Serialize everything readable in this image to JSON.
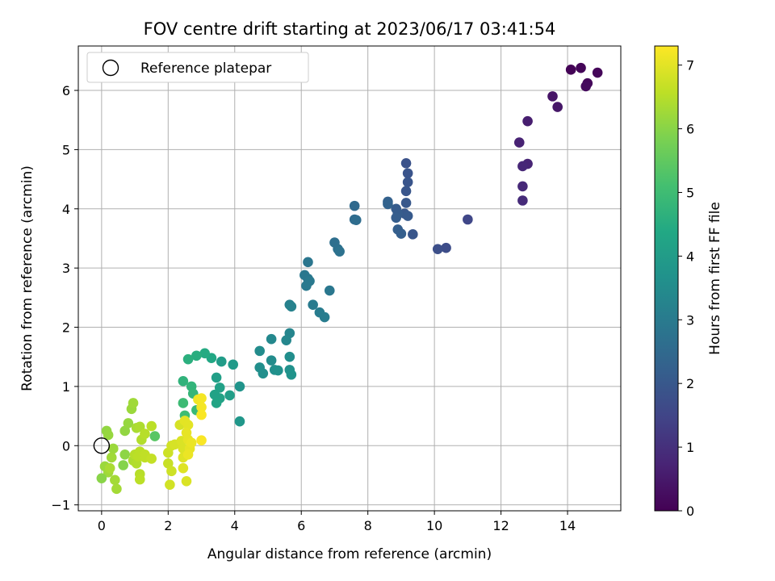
{
  "chart_data": {
    "type": "scatter",
    "title": "FOV centre drift starting at 2023/06/17 03:41:54",
    "xlabel": "Angular distance from reference (arcmin)",
    "ylabel": "Rotation from reference (arcmin)",
    "xlim": [
      -0.7,
      15.6
    ],
    "ylim": [
      -1.1,
      6.75
    ],
    "xticks": [
      0,
      2,
      4,
      6,
      8,
      10,
      12,
      14
    ],
    "yticks": [
      -1,
      0,
      1,
      2,
      3,
      4,
      5,
      6
    ],
    "grid": true,
    "legend": {
      "placement": "top-left",
      "entries": [
        "Reference platepar"
      ]
    },
    "reference_point": {
      "x": 0,
      "y": 0,
      "name": "Reference platepar"
    },
    "colorbar": {
      "label": "Hours from first FF file",
      "range": [
        0,
        7.3
      ],
      "ticks": [
        0,
        1,
        2,
        3,
        4,
        5,
        6,
        7
      ],
      "colormap": "viridis"
    },
    "points": [
      {
        "x": 14.1,
        "y": 6.35,
        "h": 0.05
      },
      {
        "x": 14.4,
        "y": 6.38,
        "h": 0.08
      },
      {
        "x": 14.9,
        "y": 6.3,
        "h": 0.1
      },
      {
        "x": 14.6,
        "y": 6.12,
        "h": 0.15
      },
      {
        "x": 14.55,
        "y": 6.07,
        "h": 0.2
      },
      {
        "x": 13.55,
        "y": 5.9,
        "h": 0.4
      },
      {
        "x": 13.7,
        "y": 5.72,
        "h": 0.45
      },
      {
        "x": 12.8,
        "y": 5.48,
        "h": 0.6
      },
      {
        "x": 12.55,
        "y": 5.12,
        "h": 0.7
      },
      {
        "x": 12.8,
        "y": 4.76,
        "h": 0.75
      },
      {
        "x": 12.65,
        "y": 4.72,
        "h": 0.8
      },
      {
        "x": 12.65,
        "y": 4.38,
        "h": 0.85
      },
      {
        "x": 12.65,
        "y": 4.14,
        "h": 0.9
      },
      {
        "x": 11.0,
        "y": 3.82,
        "h": 1.55
      },
      {
        "x": 10.35,
        "y": 3.34,
        "h": 1.7
      },
      {
        "x": 10.1,
        "y": 3.32,
        "h": 1.75
      },
      {
        "x": 9.15,
        "y": 4.77,
        "h": 1.85
      },
      {
        "x": 9.2,
        "y": 4.6,
        "h": 1.9
      },
      {
        "x": 9.2,
        "y": 4.45,
        "h": 1.92
      },
      {
        "x": 9.15,
        "y": 4.3,
        "h": 1.95
      },
      {
        "x": 9.15,
        "y": 4.1,
        "h": 2.0
      },
      {
        "x": 9.1,
        "y": 3.92,
        "h": 2.0
      },
      {
        "x": 9.2,
        "y": 3.88,
        "h": 2.05
      },
      {
        "x": 9.35,
        "y": 3.57,
        "h": 1.95
      },
      {
        "x": 8.85,
        "y": 4.0,
        "h": 2.1
      },
      {
        "x": 8.9,
        "y": 3.92,
        "h": 2.1
      },
      {
        "x": 8.85,
        "y": 3.85,
        "h": 2.15
      },
      {
        "x": 8.9,
        "y": 3.65,
        "h": 2.2
      },
      {
        "x": 9.0,
        "y": 3.58,
        "h": 2.2
      },
      {
        "x": 8.6,
        "y": 4.12,
        "h": 2.25
      },
      {
        "x": 8.6,
        "y": 4.08,
        "h": 2.3
      },
      {
        "x": 7.6,
        "y": 4.05,
        "h": 2.5
      },
      {
        "x": 7.6,
        "y": 3.82,
        "h": 2.55
      },
      {
        "x": 7.65,
        "y": 3.81,
        "h": 2.6
      },
      {
        "x": 7.0,
        "y": 3.43,
        "h": 2.65
      },
      {
        "x": 7.1,
        "y": 3.32,
        "h": 2.7
      },
      {
        "x": 7.15,
        "y": 3.28,
        "h": 2.75
      },
      {
        "x": 6.2,
        "y": 3.1,
        "h": 2.85
      },
      {
        "x": 6.1,
        "y": 2.88,
        "h": 2.9
      },
      {
        "x": 6.2,
        "y": 2.82,
        "h": 2.9
      },
      {
        "x": 6.25,
        "y": 2.78,
        "h": 2.95
      },
      {
        "x": 6.15,
        "y": 2.7,
        "h": 2.95
      },
      {
        "x": 6.85,
        "y": 2.62,
        "h": 2.9
      },
      {
        "x": 6.35,
        "y": 2.38,
        "h": 3.0
      },
      {
        "x": 6.55,
        "y": 2.25,
        "h": 3.05
      },
      {
        "x": 6.7,
        "y": 2.17,
        "h": 3.05
      },
      {
        "x": 5.65,
        "y": 2.38,
        "h": 3.15
      },
      {
        "x": 5.7,
        "y": 2.35,
        "h": 3.2
      },
      {
        "x": 5.65,
        "y": 1.9,
        "h": 3.3
      },
      {
        "x": 5.55,
        "y": 1.78,
        "h": 3.35
      },
      {
        "x": 5.1,
        "y": 1.8,
        "h": 3.4
      },
      {
        "x": 4.75,
        "y": 1.6,
        "h": 3.5
      },
      {
        "x": 5.65,
        "y": 1.5,
        "h": 3.55
      },
      {
        "x": 5.1,
        "y": 1.44,
        "h": 3.5
      },
      {
        "x": 4.75,
        "y": 1.32,
        "h": 3.6
      },
      {
        "x": 4.85,
        "y": 1.22,
        "h": 3.6
      },
      {
        "x": 5.2,
        "y": 1.28,
        "h": 3.6
      },
      {
        "x": 5.3,
        "y": 1.27,
        "h": 3.65
      },
      {
        "x": 5.65,
        "y": 1.28,
        "h": 3.65
      },
      {
        "x": 5.7,
        "y": 1.2,
        "h": 3.7
      },
      {
        "x": 4.15,
        "y": 1.0,
        "h": 3.75
      },
      {
        "x": 4.15,
        "y": 0.41,
        "h": 3.85
      },
      {
        "x": 3.95,
        "y": 1.37,
        "h": 3.95
      },
      {
        "x": 3.6,
        "y": 1.42,
        "h": 4.0
      },
      {
        "x": 3.85,
        "y": 0.85,
        "h": 4.05
      },
      {
        "x": 3.45,
        "y": 1.15,
        "h": 4.1
      },
      {
        "x": 3.55,
        "y": 0.98,
        "h": 4.15
      },
      {
        "x": 3.4,
        "y": 0.86,
        "h": 4.2
      },
      {
        "x": 3.55,
        "y": 0.8,
        "h": 4.2
      },
      {
        "x": 3.45,
        "y": 0.72,
        "h": 4.25
      },
      {
        "x": 3.3,
        "y": 1.48,
        "h": 4.35
      },
      {
        "x": 3.1,
        "y": 1.56,
        "h": 4.45
      },
      {
        "x": 2.85,
        "y": 1.52,
        "h": 4.55
      },
      {
        "x": 2.6,
        "y": 1.46,
        "h": 4.6
      },
      {
        "x": 2.45,
        "y": 1.09,
        "h": 4.7
      },
      {
        "x": 2.7,
        "y": 1.0,
        "h": 4.75
      },
      {
        "x": 2.75,
        "y": 0.88,
        "h": 4.8
      },
      {
        "x": 2.85,
        "y": 0.6,
        "h": 4.9
      },
      {
        "x": 2.45,
        "y": 0.72,
        "h": 4.95
      },
      {
        "x": 2.5,
        "y": 0.51,
        "h": 5.0
      },
      {
        "x": 0.15,
        "y": 0.25,
        "h": 6.1
      },
      {
        "x": 0.2,
        "y": 0.18,
        "h": 6.15
      },
      {
        "x": 0.1,
        "y": -0.35,
        "h": 6.2
      },
      {
        "x": 0.2,
        "y": -0.45,
        "h": 6.25
      },
      {
        "x": 0.35,
        "y": -0.05,
        "h": 6.2
      },
      {
        "x": 0.3,
        "y": -0.2,
        "h": 6.25
      },
      {
        "x": 0.4,
        "y": -0.58,
        "h": 6.3
      },
      {
        "x": 0.45,
        "y": -0.73,
        "h": 6.3
      },
      {
        "x": 0.25,
        "y": -0.38,
        "h": 6.35
      },
      {
        "x": 0.0,
        "y": -0.55,
        "h": 6.0
      },
      {
        "x": 0.7,
        "y": -0.15,
        "h": 6.05
      },
      {
        "x": 0.7,
        "y": 0.25,
        "h": 6.1
      },
      {
        "x": 0.8,
        "y": 0.38,
        "h": 6.15
      },
      {
        "x": 0.9,
        "y": 0.62,
        "h": 6.2
      },
      {
        "x": 0.95,
        "y": 0.72,
        "h": 6.25
      },
      {
        "x": 0.65,
        "y": -0.33,
        "h": 5.95
      },
      {
        "x": 0.95,
        "y": -0.25,
        "h": 6.4
      },
      {
        "x": 1.05,
        "y": -0.3,
        "h": 6.45
      },
      {
        "x": 1.0,
        "y": -0.15,
        "h": 6.5
      },
      {
        "x": 1.1,
        "y": -0.18,
        "h": 6.55
      },
      {
        "x": 1.15,
        "y": -0.1,
        "h": 6.55
      },
      {
        "x": 1.3,
        "y": -0.2,
        "h": 6.6
      },
      {
        "x": 1.3,
        "y": -0.15,
        "h": 6.6
      },
      {
        "x": 1.5,
        "y": -0.22,
        "h": 6.65
      },
      {
        "x": 1.05,
        "y": 0.3,
        "h": 6.35
      },
      {
        "x": 1.15,
        "y": 0.32,
        "h": 6.4
      },
      {
        "x": 1.2,
        "y": 0.1,
        "h": 6.45
      },
      {
        "x": 1.3,
        "y": 0.2,
        "h": 6.5
      },
      {
        "x": 1.5,
        "y": 0.33,
        "h": 6.55
      },
      {
        "x": 1.6,
        "y": 0.16,
        "h": 5.4
      },
      {
        "x": 1.15,
        "y": -0.48,
        "h": 6.5
      },
      {
        "x": 1.15,
        "y": -0.57,
        "h": 6.55
      },
      {
        "x": 2.0,
        "y": -0.3,
        "h": 6.7
      },
      {
        "x": 2.0,
        "y": -0.12,
        "h": 6.75
      },
      {
        "x": 2.1,
        "y": -0.43,
        "h": 6.75
      },
      {
        "x": 2.05,
        "y": -0.66,
        "h": 6.8
      },
      {
        "x": 2.1,
        "y": 0.0,
        "h": 6.8
      },
      {
        "x": 2.2,
        "y": 0.02,
        "h": 6.85
      },
      {
        "x": 2.35,
        "y": 0.35,
        "h": 6.85
      },
      {
        "x": 2.4,
        "y": 0.08,
        "h": 6.9
      },
      {
        "x": 2.45,
        "y": -0.05,
        "h": 6.9
      },
      {
        "x": 2.45,
        "y": -0.2,
        "h": 6.95
      },
      {
        "x": 2.45,
        "y": -0.38,
        "h": 6.95
      },
      {
        "x": 2.55,
        "y": -0.6,
        "h": 6.9
      },
      {
        "x": 2.5,
        "y": 0.42,
        "h": 7.0
      },
      {
        "x": 2.6,
        "y": 0.35,
        "h": 7.0
      },
      {
        "x": 2.55,
        "y": 0.22,
        "h": 7.05
      },
      {
        "x": 2.6,
        "y": 0.1,
        "h": 7.05
      },
      {
        "x": 2.65,
        "y": -0.05,
        "h": 7.05
      },
      {
        "x": 2.7,
        "y": 0.05,
        "h": 7.1
      },
      {
        "x": 2.6,
        "y": -0.15,
        "h": 7.1
      },
      {
        "x": 2.9,
        "y": 0.78,
        "h": 7.15
      },
      {
        "x": 3.0,
        "y": 0.8,
        "h": 7.2
      },
      {
        "x": 3.0,
        "y": 0.65,
        "h": 7.2
      },
      {
        "x": 3.0,
        "y": 0.52,
        "h": 7.25
      },
      {
        "x": 3.0,
        "y": 0.09,
        "h": 7.25
      }
    ]
  }
}
